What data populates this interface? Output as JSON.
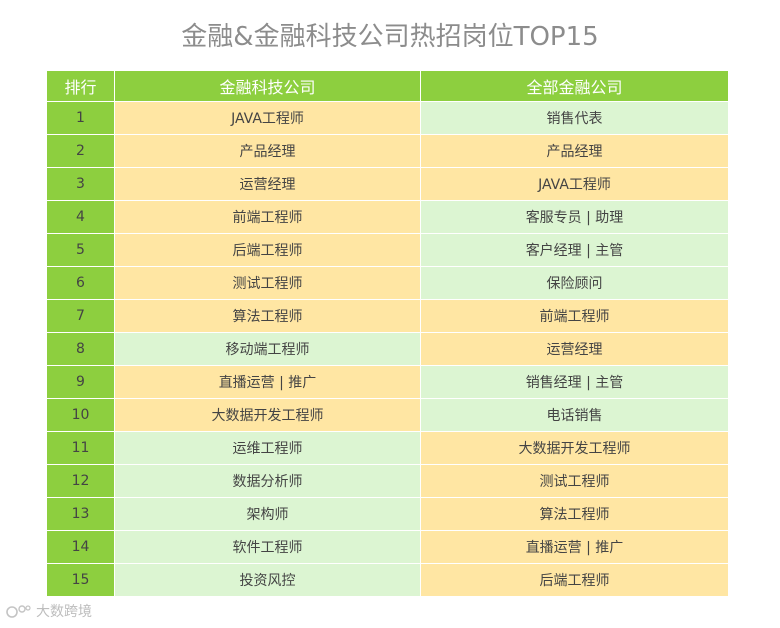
{
  "title": "金融&金融科技公司热招岗位TOP15",
  "table": {
    "headers": {
      "rank": "排行",
      "fintech": "金融科技公司",
      "all_finance": "全部金融公司"
    },
    "rows": [
      {
        "rank": "1",
        "fintech": "JAVA工程师",
        "all_finance": "销售代表",
        "fintech_color": "yellow",
        "all_color": "green"
      },
      {
        "rank": "2",
        "fintech": "产品经理",
        "all_finance": "产品经理",
        "fintech_color": "yellow",
        "all_color": "yellow"
      },
      {
        "rank": "3",
        "fintech": "运营经理",
        "all_finance": "JAVA工程师",
        "fintech_color": "yellow",
        "all_color": "yellow"
      },
      {
        "rank": "4",
        "fintech": "前端工程师",
        "all_finance": "客服专员 | 助理",
        "fintech_color": "yellow",
        "all_color": "green"
      },
      {
        "rank": "5",
        "fintech": "后端工程师",
        "all_finance": "客户经理 | 主管",
        "fintech_color": "yellow",
        "all_color": "green"
      },
      {
        "rank": "6",
        "fintech": "测试工程师",
        "all_finance": "保险顾问",
        "fintech_color": "yellow",
        "all_color": "green"
      },
      {
        "rank": "7",
        "fintech": "算法工程师",
        "all_finance": "前端工程师",
        "fintech_color": "yellow",
        "all_color": "yellow"
      },
      {
        "rank": "8",
        "fintech": "移动端工程师",
        "all_finance": "运营经理",
        "fintech_color": "green",
        "all_color": "yellow"
      },
      {
        "rank": "9",
        "fintech": "直播运营 | 推广",
        "all_finance": "销售经理 | 主管",
        "fintech_color": "yellow",
        "all_color": "green"
      },
      {
        "rank": "10",
        "fintech": "大数据开发工程师",
        "all_finance": "电话销售",
        "fintech_color": "yellow",
        "all_color": "green"
      },
      {
        "rank": "11",
        "fintech": "运维工程师",
        "all_finance": "大数据开发工程师",
        "fintech_color": "green",
        "all_color": "yellow"
      },
      {
        "rank": "12",
        "fintech": "数据分析师",
        "all_finance": "测试工程师",
        "fintech_color": "green",
        "all_color": "yellow"
      },
      {
        "rank": "13",
        "fintech": "架构师",
        "all_finance": "算法工程师",
        "fintech_color": "green",
        "all_color": "yellow"
      },
      {
        "rank": "14",
        "fintech": "软件工程师",
        "all_finance": "直播运营 | 推广",
        "fintech_color": "green",
        "all_color": "yellow"
      },
      {
        "rank": "15",
        "fintech": "投资风控",
        "all_finance": "后端工程师",
        "fintech_color": "green",
        "all_color": "yellow"
      }
    ]
  },
  "watermark": {
    "text": "大数跨境",
    "icon": "brand-logo-icon"
  },
  "colors": {
    "header_green": "#8dcf3f",
    "cell_yellow": "#ffe6a3",
    "cell_green": "#dcf5d2",
    "title_gray": "#8c8c8c"
  }
}
